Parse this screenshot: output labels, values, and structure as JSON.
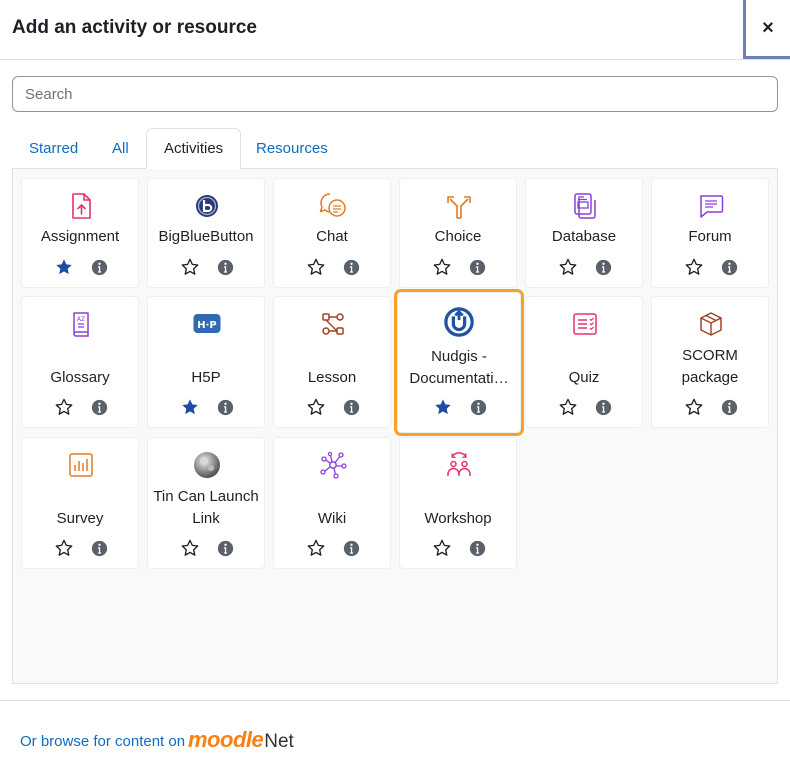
{
  "dialog": {
    "title": "Add an activity or resource",
    "close_label": "×"
  },
  "search": {
    "placeholder": "Search",
    "value": ""
  },
  "tabs": [
    {
      "label": "Starred",
      "active": false
    },
    {
      "label": "All",
      "active": false
    },
    {
      "label": "Activities",
      "active": true
    },
    {
      "label": "Resources",
      "active": false
    }
  ],
  "modules": [
    {
      "name": "Assignment",
      "icon": "assignment-icon",
      "color": "#e8316d",
      "starred": true
    },
    {
      "name": "BigBlueButton",
      "icon": "bigbluebutton-icon",
      "color": "#283873",
      "starred": false
    },
    {
      "name": "Chat",
      "icon": "chat-icon",
      "color": "#e57a1f",
      "starred": false
    },
    {
      "name": "Choice",
      "icon": "choice-icon",
      "color": "#e57a1f",
      "starred": false
    },
    {
      "name": "Database",
      "icon": "database-icon",
      "color": "#8b3fd9",
      "starred": false
    },
    {
      "name": "Forum",
      "icon": "forum-icon",
      "color": "#8b3fd9",
      "starred": false
    },
    {
      "name": "Glossary",
      "icon": "glossary-icon",
      "color": "#8b3fd9",
      "starred": false
    },
    {
      "name": "H5P",
      "icon": "h5p-icon",
      "color": "#2f6bb3",
      "starred": true
    },
    {
      "name": "Lesson",
      "icon": "lesson-icon",
      "color": "#a0431f",
      "starred": false
    },
    {
      "name": "Nudgis - Documentati…",
      "icon": "nudgis-icon",
      "color": "#1f53a4",
      "starred": true
    },
    {
      "name": "Quiz",
      "icon": "quiz-icon",
      "color": "#e8316d",
      "starred": false
    },
    {
      "name": "SCORM package",
      "icon": "scorm-icon",
      "color": "#a0431f",
      "starred": false
    },
    {
      "name": "Survey",
      "icon": "survey-icon",
      "color": "#e57a1f",
      "starred": false
    },
    {
      "name": "Tin Can Launch Link",
      "icon": "tincan-icon",
      "color": "#666666",
      "starred": false
    },
    {
      "name": "Wiki",
      "icon": "wiki-icon",
      "color": "#8b3fd9",
      "starred": false
    },
    {
      "name": "Workshop",
      "icon": "workshop-icon",
      "color": "#e8316d",
      "starred": false
    }
  ],
  "footer": {
    "browse_text": "Or browse for content on",
    "logo_moodle": "moodle",
    "logo_net": "Net"
  },
  "colors": {
    "link": "#0f6cbf",
    "star_filled": "#1f4ca3",
    "highlight": "#f7a12b"
  }
}
